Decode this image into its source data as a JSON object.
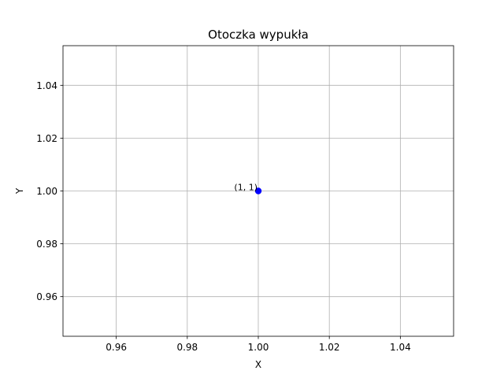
{
  "chart_data": {
    "type": "scatter",
    "title": "Otoczka wypukła",
    "xlabel": "X",
    "ylabel": "Y",
    "xlim": [
      0.945,
      1.055
    ],
    "ylim": [
      0.945,
      1.055
    ],
    "grid": true,
    "xticks": [
      0.96,
      0.98,
      1.0,
      1.02,
      1.04
    ],
    "xtick_labels": [
      "0.96",
      "0.98",
      "1.00",
      "1.02",
      "1.04"
    ],
    "yticks": [
      0.96,
      0.98,
      1.0,
      1.02,
      1.04
    ],
    "ytick_labels": [
      "0.96",
      "0.98",
      "1.00",
      "1.02",
      "1.04"
    ],
    "series": [
      {
        "points": [
          {
            "x": 1,
            "y": 1,
            "label": "(1, 1)"
          }
        ],
        "color": "#0000ff"
      }
    ]
  }
}
